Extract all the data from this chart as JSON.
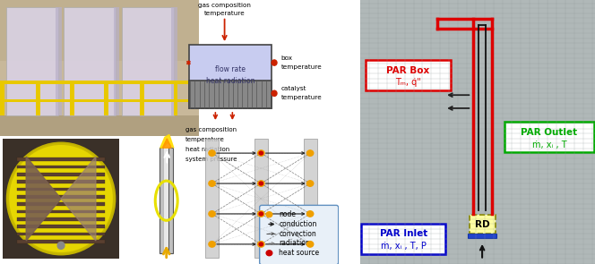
{
  "fig_width": 6.64,
  "fig_height": 2.95,
  "dpi": 100,
  "bg_color": "#ffffff",
  "middle_top": {
    "box_fill": "#c8ccf0",
    "catalyst_fill": "#888888",
    "labels_top": [
      "gas composition",
      "temperature"
    ],
    "label_box_right": [
      "box",
      "temperature"
    ],
    "label_catalyst_right": [
      "catalyst",
      "temperature"
    ],
    "labels_bottom": [
      "gas composition",
      "temperature",
      "heat radiation",
      "system pressure"
    ],
    "label_flow": [
      "flow rate",
      "heat radiation"
    ]
  },
  "middle_bottom": {
    "node_color": "#f0a000",
    "heat_source_color": "#cc0000",
    "legend_bg": "#e8f0f8",
    "legend_border": "#6090c0",
    "legend_items": [
      "node",
      "conduction",
      "convection",
      "radiation",
      "heat source"
    ]
  },
  "right_panel": {
    "mesh_bg": "#b0b8b8",
    "par_box_outline": "#dd0000",
    "par_inlet_outline": "#0000cc",
    "par_outlet_outline": "#00aa00",
    "rd_fill": "#ffffa0",
    "rd_border": "#888800",
    "rd_text": "RD",
    "par_box_label": "PAR Box",
    "par_box_sublabel": "Tₘ, q̇\"",
    "par_outlet_label": "PAR Outlet",
    "par_outlet_sublabel": "ṁ, xᵢ , T",
    "par_inlet_label": "PAR Inlet",
    "par_inlet_sublabel": "ṁ, xᵢ , T, P"
  }
}
